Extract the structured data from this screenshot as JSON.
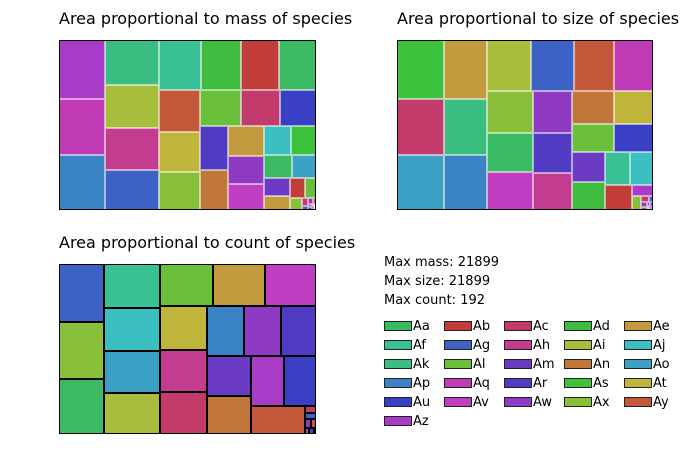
{
  "chart_data": [
    {
      "type": "treemap",
      "title": "Area proportional to mass of species",
      "metric": "mass",
      "max": 21899,
      "cell_border": "thin",
      "sorted_labels": [
        "Az",
        "Aq",
        "Ap",
        "Ak",
        "Ai",
        "Ah",
        "Ag",
        "Af",
        "Ad",
        "Ab",
        "Aa",
        "Ay",
        "At",
        "Ax",
        "Al",
        "Ac",
        "Au",
        "Ar",
        "An",
        "Ae",
        "Aw",
        "Av",
        "Aj",
        "As",
        "Aa",
        "Ao",
        "Am",
        "Ae",
        "Ab",
        "Al",
        "Ax",
        "Ac",
        "Ag",
        "Aw",
        "Ay",
        "Av",
        "Ar",
        "At",
        "Au",
        "Ao",
        "Aj",
        "Am"
      ],
      "values": [
        21899,
        21204,
        20510,
        19816,
        19122,
        18428,
        17734,
        17040,
        16346,
        15652,
        14958,
        14264,
        13570,
        12876,
        12182,
        11488,
        10794,
        10100,
        9406,
        8712,
        8018,
        7324,
        6630,
        5936,
        5242,
        4548,
        3854,
        3160,
        2466,
        1772,
        1078,
        384,
        230,
        190,
        150,
        120,
        90,
        70,
        50,
        35,
        20,
        10
      ]
    },
    {
      "type": "treemap",
      "title": "Area proportional to size of species",
      "metric": "size",
      "max": 21899,
      "cell_border": "thin",
      "sorted_labels": [
        "As",
        "Ac",
        "Ao",
        "Ae",
        "Ak",
        "Ap",
        "Ai",
        "Ag",
        "Ay",
        "Aq",
        "Ax",
        "Aa",
        "Av",
        "Aw",
        "Ar",
        "Ah",
        "An",
        "At",
        "Al",
        "Au",
        "Am",
        "Ad",
        "Af",
        "Aj",
        "Ab",
        "Az",
        "Ax",
        "Ac",
        "Ag",
        "Aw",
        "Ay",
        "Av",
        "Ar",
        "At",
        "Au",
        "Ao",
        "Aj",
        "Am"
      ],
      "values": [
        21899,
        21204,
        20510,
        19816,
        19122,
        18428,
        17734,
        17040,
        16346,
        15652,
        14958,
        14264,
        13570,
        12876,
        12182,
        11488,
        10794,
        10100,
        9406,
        8712,
        8018,
        7324,
        6630,
        5936,
        5242,
        1772,
        1078,
        384,
        230,
        190,
        150,
        120,
        90,
        70,
        50,
        35,
        20,
        10
      ]
    },
    {
      "type": "treemap",
      "title": "Area proportional to count of species",
      "metric": "count",
      "max": 192,
      "cell_border": "thick",
      "sorted_labels": [
        "Ag",
        "Ax",
        "Aa",
        "Af",
        "Aj",
        "Ao",
        "Ai",
        "Al",
        "Ae",
        "Av",
        "At",
        "Ah",
        "Ac",
        "Ap",
        "Aw",
        "Ar",
        "Am",
        "An",
        "Az",
        "Au",
        "Ay",
        "Ac",
        "Ag",
        "Aw",
        "Ay",
        "Av",
        "Ar",
        "At"
      ],
      "values": [
        192,
        188,
        184,
        180,
        176,
        172,
        168,
        164,
        160,
        156,
        152,
        148,
        144,
        140,
        136,
        132,
        128,
        124,
        120,
        116,
        112,
        6,
        5,
        4,
        3,
        2,
        2,
        1
      ]
    }
  ],
  "stats": [
    {
      "label": "Max mass:",
      "value": "21899"
    },
    {
      "label": "Max size:",
      "value": "21899"
    },
    {
      "label": "Max count:",
      "value": "192"
    }
  ],
  "legend": [
    {
      "label": "Aa",
      "color": "#3bba64"
    },
    {
      "label": "Ab",
      "color": "#c23c3a"
    },
    {
      "label": "Ac",
      "color": "#c23b6a"
    },
    {
      "label": "Ad",
      "color": "#3fbb40"
    },
    {
      "label": "Ae",
      "color": "#c39a3e"
    },
    {
      "label": "Af",
      "color": "#39c094"
    },
    {
      "label": "Ag",
      "color": "#3b62c4"
    },
    {
      "label": "Ah",
      "color": "#c33c90"
    },
    {
      "label": "Ai",
      "color": "#a7be3c"
    },
    {
      "label": "Aj",
      "color": "#3bbfc1"
    },
    {
      "label": "Ak",
      "color": "#3bbd82"
    },
    {
      "label": "Al",
      "color": "#6abf3b"
    },
    {
      "label": "Am",
      "color": "#6a3bc2"
    },
    {
      "label": "An",
      "color": "#c2773a"
    },
    {
      "label": "Ao",
      "color": "#3ba2c6"
    },
    {
      "label": "Ap",
      "color": "#3a83c4"
    },
    {
      "label": "Aq",
      "color": "#c03bb5"
    },
    {
      "label": "Ar",
      "color": "#503bc3"
    },
    {
      "label": "As",
      "color": "#3bc33b"
    },
    {
      "label": "At",
      "color": "#bfb53a"
    },
    {
      "label": "Au",
      "color": "#3940c3"
    },
    {
      "label": "Av",
      "color": "#c03ec2"
    },
    {
      "label": "Aw",
      "color": "#8e3ac2"
    },
    {
      "label": "Ax",
      "color": "#8abf3a"
    },
    {
      "label": "Ay",
      "color": "#c3583b"
    },
    {
      "label": "Az",
      "color": "#a93cc6"
    }
  ]
}
